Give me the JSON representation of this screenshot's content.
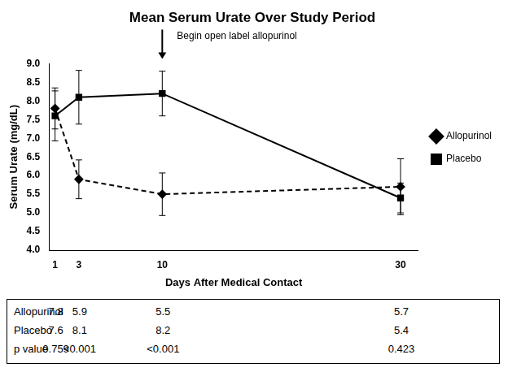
{
  "chart_data": {
    "type": "line",
    "title": "Mean Serum Urate Over Study Period",
    "x_label": "Days After Medical Contact",
    "y_label": "Serum Urate (mg/dL)",
    "x": [
      1,
      3,
      10,
      30
    ],
    "series": [
      {
        "name": "Allopurinol",
        "color": "#000000",
        "marker": "diamond",
        "line_style": "dashed",
        "values": [
          7.8,
          5.9,
          5.5,
          5.7
        ],
        "error": [
          0.55,
          0.52,
          0.57,
          0.75
        ]
      },
      {
        "name": "Placebo",
        "color": "#000000",
        "marker": "square",
        "line_style": "solid",
        "values": [
          7.6,
          8.1,
          8.2,
          5.4
        ],
        "error": [
          0.67,
          0.72,
          0.6,
          0.4
        ]
      }
    ],
    "xlim": [
      0.5,
      31.5
    ],
    "xticks": [
      1,
      3,
      10,
      30
    ],
    "ylim": [
      4,
      9
    ],
    "yticks": [
      {
        "value": 4,
        "label": "4.0"
      },
      {
        "value": 4.5,
        "label": "4.5"
      },
      {
        "value": 5,
        "label": "5.0"
      },
      {
        "value": 5.5,
        "label": "5.5"
      },
      {
        "value": 6,
        "label": "6.0"
      },
      {
        "value": 6.5,
        "label": "6.5"
      },
      {
        "value": 7,
        "label": "7.0"
      },
      {
        "value": 7.5,
        "label": "7.5"
      },
      {
        "value": 8,
        "label": "8.0"
      },
      {
        "value": 8.5,
        "label": "8.5"
      },
      {
        "value": 9,
        "label": "9.0"
      }
    ],
    "grid": false,
    "legend": "right",
    "annotation": {
      "text": "Begin open label allopurinol",
      "x": 10
    },
    "table": {
      "p_label": "p value",
      "p_values": [
        "0.759",
        "<0.001",
        "<0.001",
        "0.423"
      ]
    }
  }
}
